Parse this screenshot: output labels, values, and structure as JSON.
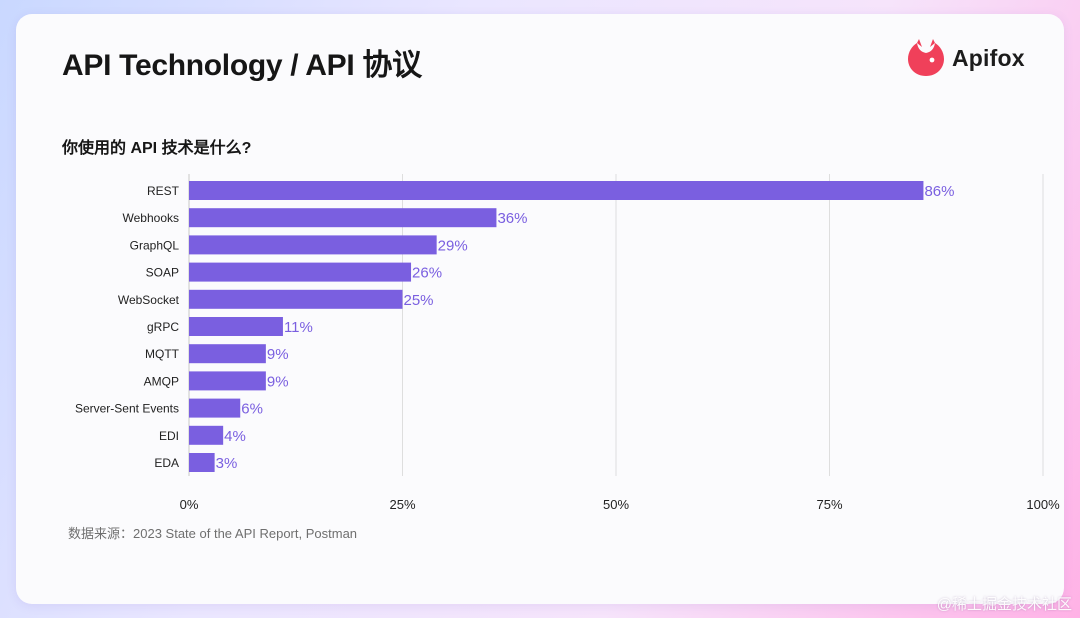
{
  "header": {
    "title": "API Technology / API 协议",
    "logo_text": "Apifox"
  },
  "colors": {
    "bar": "#7a5fe0",
    "value_label": "#7a5fe0",
    "grid": "#dedede",
    "logo_accent": "#f0405a"
  },
  "icons": {
    "logo": "apifox-logo-icon"
  },
  "chart_data": {
    "type": "bar",
    "orientation": "horizontal",
    "title": "你使用的 API 技术是什么?",
    "xlabel": "",
    "ylabel": "",
    "categories": [
      "REST",
      "Webhooks",
      "GraphQL",
      "SOAP",
      "WebSocket",
      "gRPC",
      "MQTT",
      "AMQP",
      "Server-Sent Events",
      "EDI",
      "EDA"
    ],
    "values": [
      86,
      36,
      29,
      26,
      25,
      11,
      9,
      9,
      6,
      4,
      3
    ],
    "value_labels": [
      "86%",
      "36%",
      "29%",
      "26%",
      "25%",
      "11%",
      "9%",
      "9%",
      "6%",
      "4%",
      "3%"
    ],
    "xlim": [
      0,
      100
    ],
    "x_ticks": [
      0,
      25,
      50,
      75,
      100
    ],
    "x_tick_labels": [
      "0%",
      "25%",
      "50%",
      "75%",
      "100%"
    ],
    "grid": true,
    "legend": "none"
  },
  "footer": {
    "source": "数据来源：2023 State of the API Report, Postman"
  },
  "watermark": {
    "text": "@稀土掘金技术社区"
  }
}
